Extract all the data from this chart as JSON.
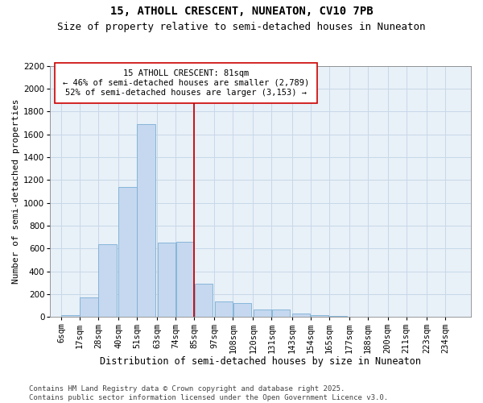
{
  "title1": "15, ATHOLL CRESCENT, NUNEATON, CV10 7PB",
  "title2": "Size of property relative to semi-detached houses in Nuneaton",
  "xlabel": "Distribution of semi-detached houses by size in Nuneaton",
  "ylabel": "Number of semi-detached properties",
  "annotation_title": "15 ATHOLL CRESCENT: 81sqm",
  "annotation_line1": "← 46% of semi-detached houses are smaller (2,789)",
  "annotation_line2": "52% of semi-detached houses are larger (3,153) →",
  "footer1": "Contains HM Land Registry data © Crown copyright and database right 2025.",
  "footer2": "Contains public sector information licensed under the Open Government Licence v3.0.",
  "bar_color": "#c5d8ef",
  "bar_edge_color": "#7bafd4",
  "grid_color": "#c8d8e8",
  "background_color": "#e8f0f8",
  "vline_color": "#cc0000",
  "categories": [
    "6sqm",
    "17sqm",
    "28sqm",
    "40sqm",
    "51sqm",
    "63sqm",
    "74sqm",
    "85sqm",
    "97sqm",
    "108sqm",
    "120sqm",
    "131sqm",
    "143sqm",
    "154sqm",
    "165sqm",
    "177sqm",
    "188sqm",
    "200sqm",
    "211sqm",
    "223sqm",
    "234sqm"
  ],
  "bin_left_edges": [
    6,
    17,
    28,
    40,
    51,
    63,
    74,
    85,
    97,
    108,
    120,
    131,
    143,
    154,
    165,
    177,
    188,
    200,
    211,
    223,
    234
  ],
  "bin_width": 11,
  "values": [
    20,
    175,
    635,
    1140,
    1690,
    655,
    660,
    290,
    140,
    125,
    65,
    65,
    30,
    20,
    10,
    5,
    0,
    5,
    0,
    0,
    0
  ],
  "vline_x": 85,
  "ylim_max": 2200,
  "yticks": [
    0,
    200,
    400,
    600,
    800,
    1000,
    1200,
    1400,
    1600,
    1800,
    2000,
    2200
  ],
  "annotation_box_color": "#ffffff",
  "annotation_box_edge": "#cc0000",
  "title1_fontsize": 10,
  "title2_fontsize": 9,
  "axis_tick_fontsize": 7.5,
  "xlabel_fontsize": 8.5,
  "ylabel_fontsize": 8,
  "annotation_fontsize": 7.5,
  "footer_fontsize": 6.5
}
